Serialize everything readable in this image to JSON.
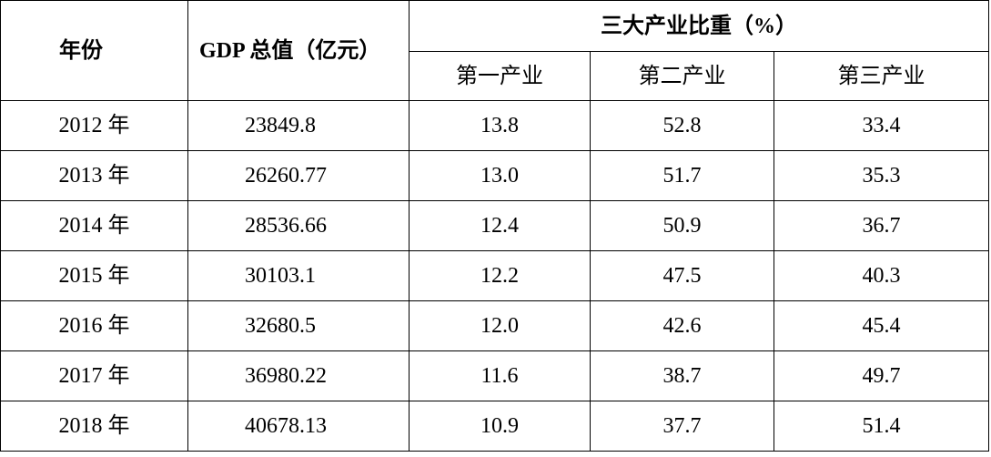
{
  "table": {
    "header": {
      "year": "年份",
      "gdp": "GDP 总值（亿元）",
      "group": "三大产业比重（%）",
      "primary": "第一产业",
      "secondary": "第二产业",
      "tertiary": "第三产业"
    },
    "rows": [
      {
        "year": "2012 年",
        "gdp": "23849.8",
        "primary": "13.8",
        "secondary": "52.8",
        "tertiary": "33.4"
      },
      {
        "year": "2013 年",
        "gdp": "26260.77",
        "primary": "13.0",
        "secondary": "51.7",
        "tertiary": "35.3"
      },
      {
        "year": "2014 年",
        "gdp": "28536.66",
        "primary": "12.4",
        "secondary": "50.9",
        "tertiary": "36.7"
      },
      {
        "year": "2015 年",
        "gdp": "30103.1",
        "primary": "12.2",
        "secondary": "47.5",
        "tertiary": "40.3"
      },
      {
        "year": "2016 年",
        "gdp": "32680.5",
        "primary": "12.0",
        "secondary": "42.6",
        "tertiary": "45.4"
      },
      {
        "year": "2017 年",
        "gdp": "36980.22",
        "primary": "11.6",
        "secondary": "38.7",
        "tertiary": "49.7"
      },
      {
        "year": "2018 年",
        "gdp": "40678.13",
        "primary": "10.9",
        "secondary": "37.7",
        "tertiary": "51.4"
      }
    ]
  }
}
